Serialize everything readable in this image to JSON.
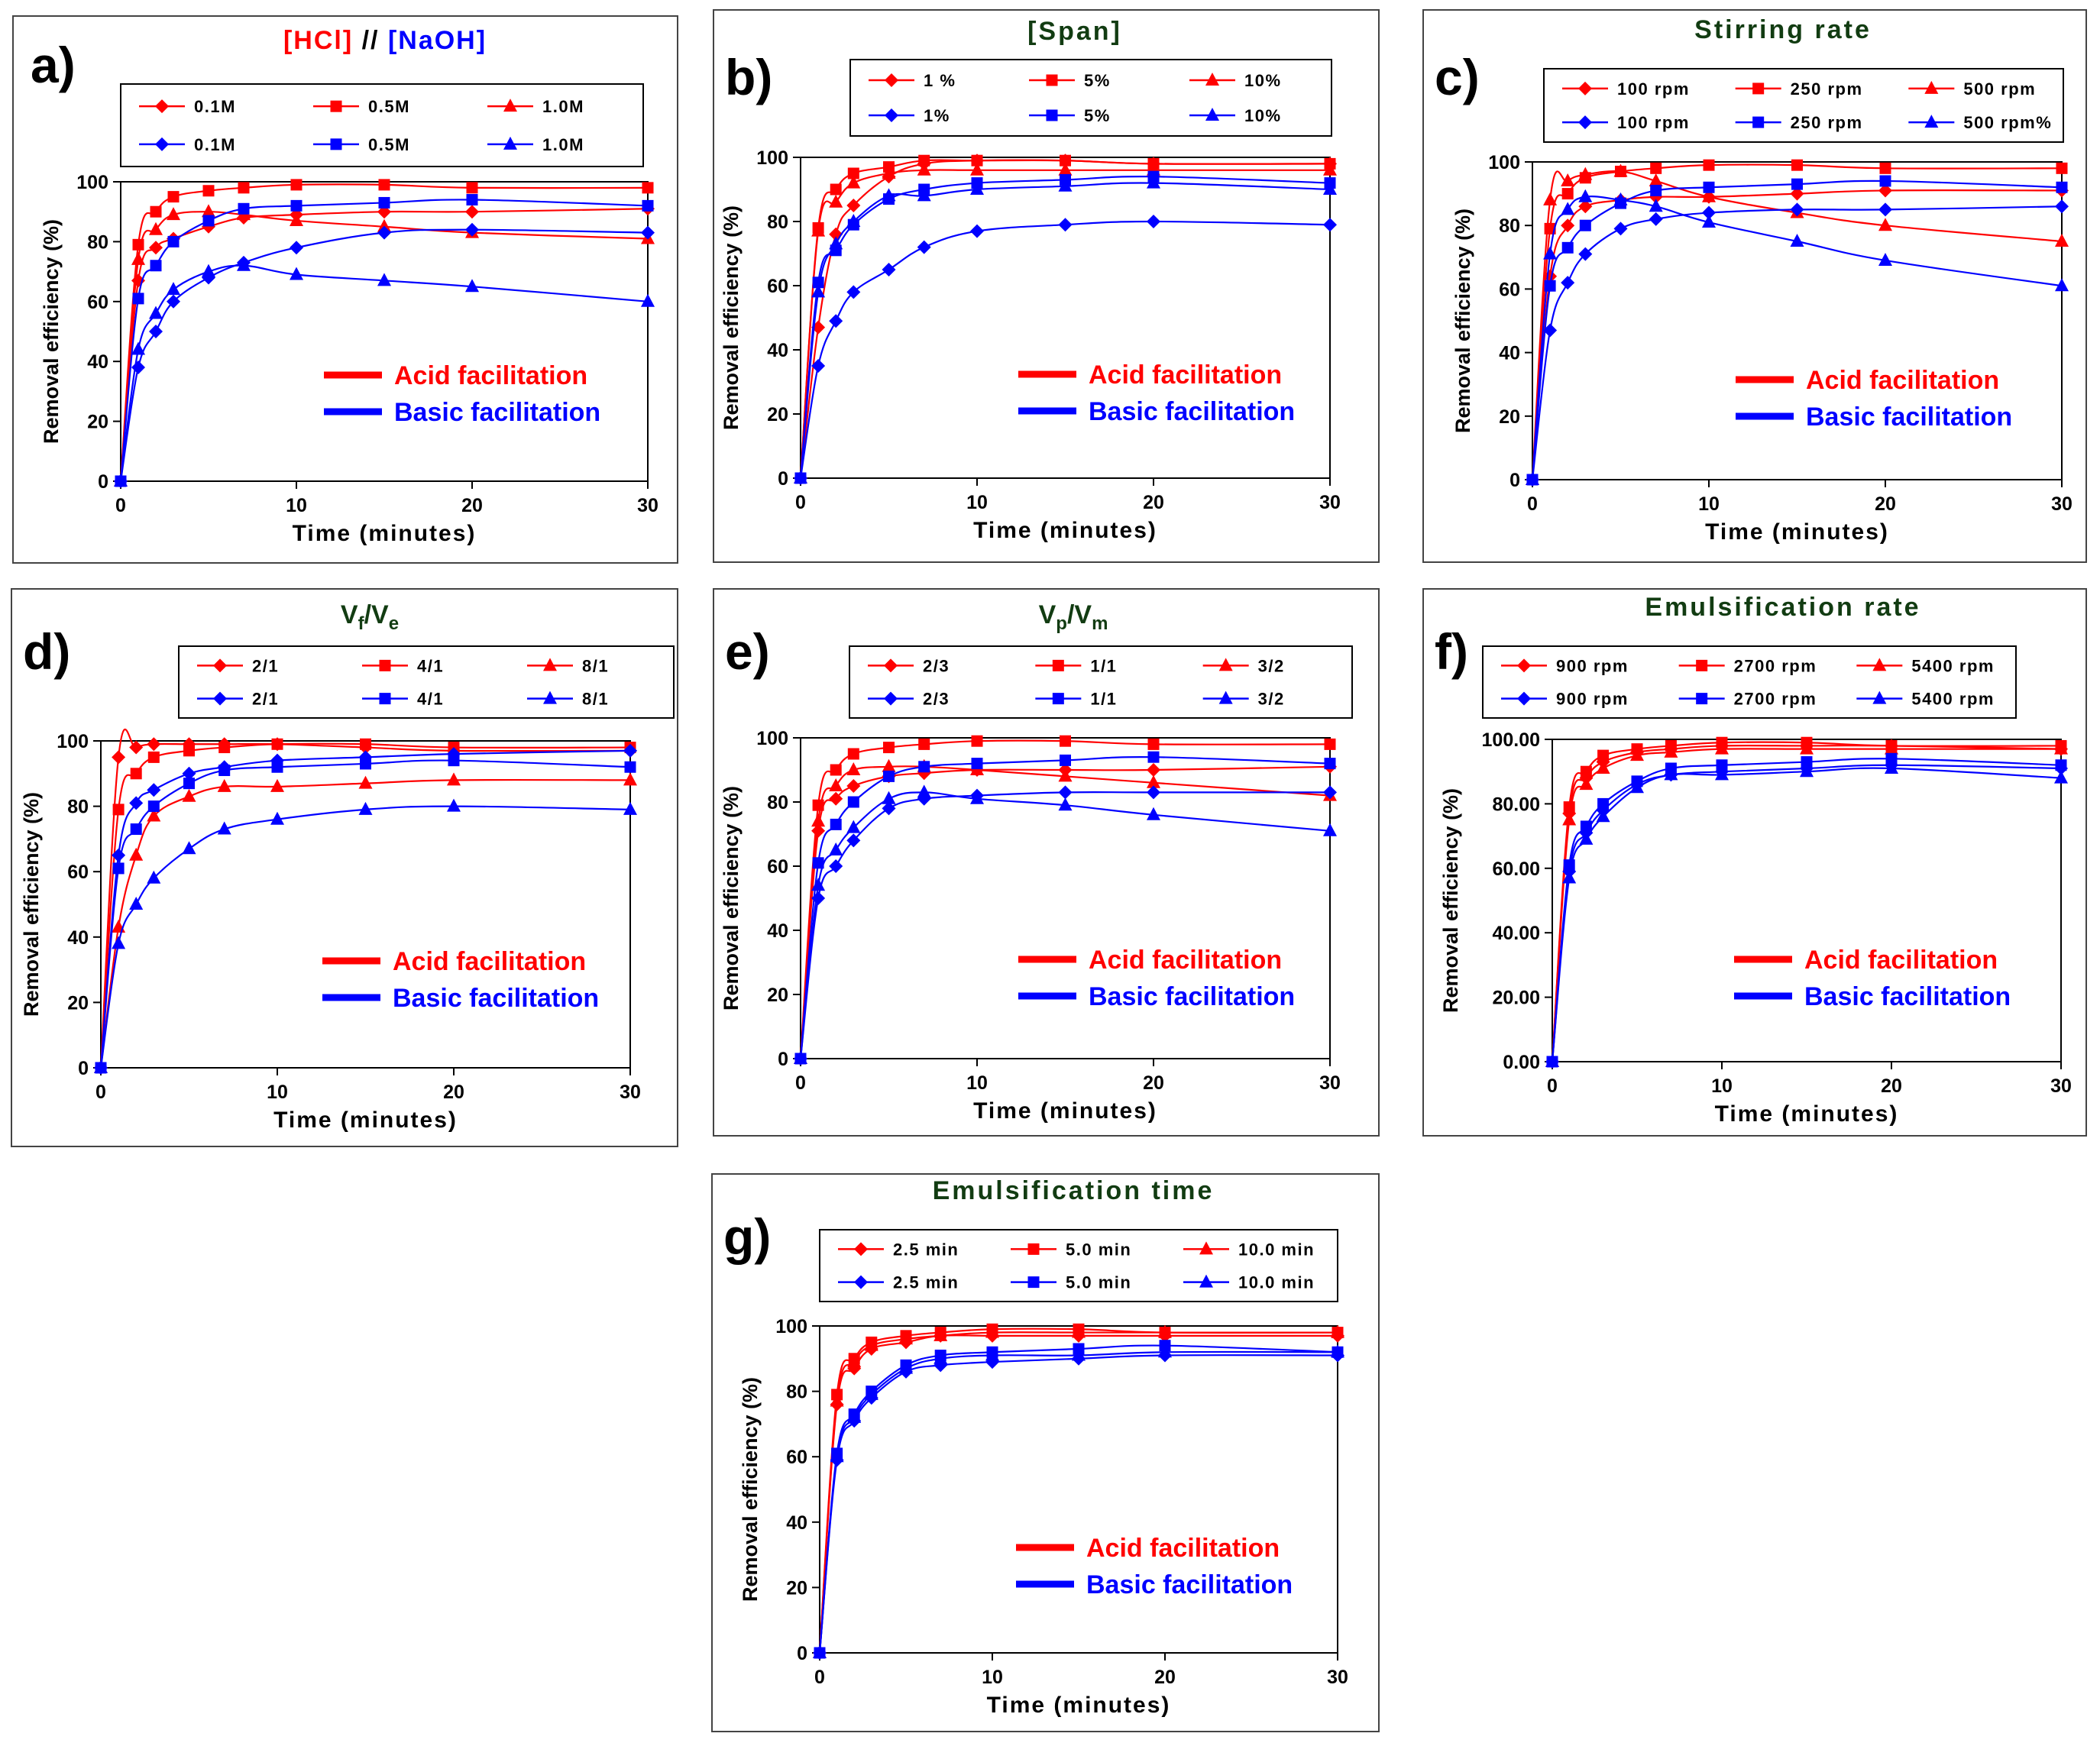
{
  "colors": {
    "acid": "#ff0000",
    "basic": "#0000ff",
    "title_dark": "#123c12"
  },
  "common": {
    "xlabel": "Time (minutes)",
    "ylabel": "Removal efficiency (%)",
    "key_acid": "Acid facilitation",
    "key_basic": "Basic facilitation"
  },
  "chart_data": [
    {
      "letter": "a)",
      "type": "line",
      "title_type": "hcl_naoh",
      "title_parts": [
        "[HCl]",
        " // ",
        "[NaOH]"
      ],
      "x": [
        0,
        1,
        2,
        3,
        5,
        7,
        10,
        15,
        20,
        30
      ],
      "xlim": [
        0,
        30
      ],
      "ylim": [
        0,
        100
      ],
      "xticks": [
        "0",
        "10",
        "20",
        "30"
      ],
      "yticks": [
        "0",
        "20",
        "40",
        "60",
        "80",
        "100"
      ],
      "xlabel": "Time (minutes)",
      "ylabel": "Removal efficiency (%)",
      "series": [
        {
          "name": "0.1M",
          "group": "acid",
          "marker": "diamond",
          "values": [
            0,
            67,
            78,
            81,
            85,
            88,
            89,
            90,
            90,
            91
          ]
        },
        {
          "name": "0.5M",
          "group": "acid",
          "marker": "square",
          "values": [
            0,
            79,
            90,
            95,
            97,
            98,
            99,
            99,
            98,
            98
          ]
        },
        {
          "name": "1.0M",
          "group": "acid",
          "marker": "triangle",
          "values": [
            0,
            74,
            84,
            89,
            90,
            89,
            87,
            85,
            83,
            81
          ]
        },
        {
          "name": "0.1M",
          "group": "basic",
          "marker": "diamond",
          "values": [
            0,
            38,
            50,
            60,
            68,
            73,
            78,
            83,
            84,
            83
          ]
        },
        {
          "name": "0.5M",
          "group": "basic",
          "marker": "square",
          "values": [
            0,
            61,
            72,
            80,
            87,
            91,
            92,
            93,
            94,
            92
          ]
        },
        {
          "name": "1.0M",
          "group": "basic",
          "marker": "triangle",
          "values": [
            0,
            44,
            56,
            64,
            70,
            72,
            69,
            67,
            65,
            60
          ]
        }
      ]
    },
    {
      "letter": "b)",
      "type": "line",
      "title_type": "plain",
      "title": "[Span]",
      "x": [
        0,
        1,
        2,
        3,
        5,
        7,
        10,
        15,
        20,
        30
      ],
      "xlim": [
        0,
        30
      ],
      "ylim": [
        0,
        100
      ],
      "xticks": [
        "0",
        "10",
        "20",
        "30"
      ],
      "yticks": [
        "0",
        "20",
        "40",
        "60",
        "80",
        "100"
      ],
      "xlabel": "Time (minutes)",
      "ylabel": "Removal efficiency (%)",
      "series": [
        {
          "name": "1 %",
          "group": "acid",
          "marker": "diamond",
          "values": [
            0,
            47,
            76,
            85,
            94,
            98,
            99,
            99,
            98,
            98
          ]
        },
        {
          "name": "5%",
          "group": "acid",
          "marker": "square",
          "values": [
            0,
            78,
            90,
            95,
            97,
            99,
            99,
            99,
            98,
            98
          ]
        },
        {
          "name": "10%",
          "group": "acid",
          "marker": "triangle",
          "values": [
            0,
            77,
            86,
            92,
            95,
            96,
            96,
            96,
            96,
            96
          ]
        },
        {
          "name": "1%",
          "group": "basic",
          "marker": "diamond",
          "values": [
            0,
            35,
            49,
            58,
            65,
            72,
            77,
            79,
            80,
            79
          ]
        },
        {
          "name": "5%",
          "group": "basic",
          "marker": "square",
          "values": [
            0,
            61,
            71,
            79,
            87,
            90,
            92,
            93,
            94,
            92
          ]
        },
        {
          "name": "10%",
          "group": "basic",
          "marker": "triangle",
          "values": [
            0,
            58,
            73,
            80,
            88,
            88,
            90,
            91,
            92,
            90
          ]
        }
      ]
    },
    {
      "letter": "c)",
      "type": "line",
      "title_type": "plain",
      "title": "Stirring rate",
      "x": [
        0,
        1,
        2,
        3,
        5,
        7,
        10,
        15,
        20,
        30
      ],
      "xlim": [
        0,
        30
      ],
      "ylim": [
        0,
        100
      ],
      "xticks": [
        "0",
        "10",
        "20",
        "30"
      ],
      "yticks": [
        "0",
        "20",
        "40",
        "60",
        "80",
        "100"
      ],
      "xlabel": "Time (minutes)",
      "ylabel": "Removal efficiency (%)",
      "series": [
        {
          "name": "100 rpm",
          "group": "acid",
          "marker": "diamond",
          "values": [
            0,
            64,
            80,
            86,
            88,
            89,
            89,
            90,
            91,
            91
          ]
        },
        {
          "name": "250 rpm",
          "group": "acid",
          "marker": "square",
          "values": [
            0,
            79,
            90,
            95,
            97,
            98,
            99,
            99,
            98,
            98
          ]
        },
        {
          "name": "500 rpm",
          "group": "acid",
          "marker": "triangle",
          "values": [
            0,
            88,
            94,
            96,
            97,
            94,
            89,
            84,
            80,
            75
          ]
        },
        {
          "name": "100 rpm",
          "group": "basic",
          "marker": "diamond",
          "values": [
            0,
            47,
            62,
            71,
            79,
            82,
            84,
            85,
            85,
            86
          ]
        },
        {
          "name": "250 rpm",
          "group": "basic",
          "marker": "square",
          "values": [
            0,
            61,
            73,
            80,
            87,
            91,
            92,
            93,
            94,
            92
          ]
        },
        {
          "name": "500 rpm%",
          "group": "basic",
          "marker": "triangle",
          "values": [
            0,
            71,
            85,
            89,
            88,
            86,
            81,
            75,
            69,
            61
          ]
        }
      ]
    },
    {
      "letter": "d)",
      "type": "line",
      "title_type": "sub",
      "title_parts": [
        "V",
        "f",
        "/V",
        "e"
      ],
      "x": [
        0,
        1,
        2,
        3,
        5,
        7,
        10,
        15,
        20,
        30
      ],
      "xlim": [
        0,
        30
      ],
      "ylim": [
        0,
        100
      ],
      "xticks": [
        "0",
        "10",
        "20",
        "30"
      ],
      "yticks": [
        "0",
        "20",
        "40",
        "60",
        "80",
        "100"
      ],
      "xlabel": "Time (minutes)",
      "ylabel": "Removal efficiency (%)",
      "series": [
        {
          "name": "2/1",
          "group": "acid",
          "marker": "diamond",
          "values": [
            0,
            95,
            98,
            99,
            99,
            99,
            99,
            98,
            97,
            97
          ]
        },
        {
          "name": "4/1",
          "group": "acid",
          "marker": "square",
          "values": [
            0,
            79,
            90,
            95,
            97,
            98,
            99,
            99,
            98,
            98
          ]
        },
        {
          "name": "8/1",
          "group": "acid",
          "marker": "triangle",
          "values": [
            0,
            43,
            65,
            77,
            83,
            86,
            86,
            87,
            88,
            88
          ]
        },
        {
          "name": "2/1",
          "group": "basic",
          "marker": "diamond",
          "values": [
            0,
            65,
            81,
            85,
            90,
            92,
            94,
            95,
            96,
            97
          ]
        },
        {
          "name": "4/1",
          "group": "basic",
          "marker": "square",
          "values": [
            0,
            61,
            73,
            80,
            87,
            91,
            92,
            93,
            94,
            92
          ]
        },
        {
          "name": "8/1",
          "group": "basic",
          "marker": "triangle",
          "values": [
            0,
            38,
            50,
            58,
            67,
            73,
            76,
            79,
            80,
            79
          ]
        }
      ]
    },
    {
      "letter": "e)",
      "type": "line",
      "title_type": "sub",
      "title_parts": [
        "V",
        "p",
        "/V",
        "m"
      ],
      "x": [
        0,
        1,
        2,
        3,
        5,
        7,
        10,
        15,
        20,
        30
      ],
      "xlim": [
        0,
        30
      ],
      "ylim": [
        0,
        100
      ],
      "xticks": [
        "0",
        "10",
        "20",
        "30"
      ],
      "yticks": [
        "0",
        "20",
        "40",
        "60",
        "80",
        "100"
      ],
      "xlabel": "Time (minutes)",
      "ylabel": "Removal efficiency (%)",
      "series": [
        {
          "name": "2/3",
          "group": "acid",
          "marker": "diamond",
          "values": [
            0,
            71,
            81,
            85,
            88,
            89,
            90,
            90,
            90,
            91
          ]
        },
        {
          "name": "1/1",
          "group": "acid",
          "marker": "square",
          "values": [
            0,
            79,
            90,
            95,
            97,
            98,
            99,
            99,
            98,
            98
          ]
        },
        {
          "name": "3/2",
          "group": "acid",
          "marker": "triangle",
          "values": [
            0,
            74,
            85,
            90,
            91,
            91,
            90,
            88,
            86,
            82
          ]
        },
        {
          "name": "2/3",
          "group": "basic",
          "marker": "diamond",
          "values": [
            0,
            50,
            60,
            68,
            78,
            81,
            82,
            83,
            83,
            83
          ]
        },
        {
          "name": "1/1",
          "group": "basic",
          "marker": "square",
          "values": [
            0,
            61,
            73,
            80,
            88,
            91,
            92,
            93,
            94,
            92
          ]
        },
        {
          "name": "3/2",
          "group": "basic",
          "marker": "triangle",
          "values": [
            0,
            54,
            65,
            72,
            81,
            83,
            81,
            79,
            76,
            71
          ]
        }
      ]
    },
    {
      "letter": "f)",
      "type": "line",
      "title_type": "plain",
      "title": "Emulsification rate",
      "x": [
        0,
        1,
        2,
        3,
        5,
        7,
        10,
        15,
        20,
        30
      ],
      "xlim": [
        0,
        30
      ],
      "ylim": [
        0,
        100
      ],
      "xticks": [
        "0",
        "10",
        "20",
        "30"
      ],
      "yticks": [
        "0.00",
        "20.00",
        "40.00",
        "60.00",
        "80.00",
        "100.00"
      ],
      "xlabel": "Time (minutes)",
      "ylabel": "Removal efficiency (%)",
      "series": [
        {
          "name": "900 rpm",
          "group": "acid",
          "marker": "diamond",
          "values": [
            0,
            77,
            88,
            93,
            96,
            97,
            98,
            98,
            98,
            97
          ]
        },
        {
          "name": "2700 rpm",
          "group": "acid",
          "marker": "square",
          "values": [
            0,
            79,
            90,
            95,
            97,
            98,
            99,
            99,
            98,
            98
          ]
        },
        {
          "name": "5400 rpm",
          "group": "acid",
          "marker": "triangle",
          "values": [
            0,
            75,
            86,
            91,
            95,
            96,
            97,
            97,
            97,
            97
          ]
        },
        {
          "name": "900 rpm",
          "group": "basic",
          "marker": "diamond",
          "values": [
            0,
            59,
            71,
            78,
            86,
            89,
            90,
            91,
            92,
            91
          ]
        },
        {
          "name": "2700 rpm",
          "group": "basic",
          "marker": "square",
          "values": [
            0,
            61,
            73,
            80,
            87,
            91,
            92,
            93,
            94,
            92
          ]
        },
        {
          "name": "5400 rpm",
          "group": "basic",
          "marker": "triangle",
          "values": [
            0,
            57,
            69,
            76,
            85,
            89,
            89,
            90,
            91,
            88
          ]
        }
      ]
    },
    {
      "letter": "g)",
      "type": "line",
      "title_type": "plain",
      "title": "Emulsification time",
      "x": [
        0,
        1,
        2,
        3,
        5,
        7,
        10,
        15,
        20,
        30
      ],
      "xlim": [
        0,
        30
      ],
      "ylim": [
        0,
        100
      ],
      "xticks": [
        "0",
        "10",
        "20",
        "30"
      ],
      "yticks": [
        "0",
        "20",
        "40",
        "60",
        "80",
        "100"
      ],
      "xlabel": "Time (minutes)",
      "ylabel": "Removal efficiency (%)",
      "series": [
        {
          "name": "2.5 min",
          "group": "acid",
          "marker": "diamond",
          "values": [
            0,
            76,
            87,
            93,
            95,
            97,
            97,
            97,
            97,
            97
          ]
        },
        {
          "name": "5.0 min",
          "group": "acid",
          "marker": "square",
          "values": [
            0,
            79,
            90,
            95,
            97,
            98,
            99,
            99,
            98,
            98
          ]
        },
        {
          "name": "10.0 min",
          "group": "acid",
          "marker": "triangle",
          "values": [
            0,
            77,
            89,
            94,
            96,
            97,
            98,
            98,
            98,
            98
          ]
        },
        {
          "name": "2.5 min",
          "group": "basic",
          "marker": "diamond",
          "values": [
            0,
            59,
            71,
            78,
            86,
            88,
            89,
            90,
            91,
            91
          ]
        },
        {
          "name": "5.0 min",
          "group": "basic",
          "marker": "square",
          "values": [
            0,
            61,
            73,
            80,
            88,
            91,
            92,
            93,
            94,
            92
          ]
        },
        {
          "name": "10.0 min",
          "group": "basic",
          "marker": "triangle",
          "values": [
            0,
            60,
            72,
            79,
            87,
            90,
            91,
            91,
            92,
            92
          ]
        }
      ]
    }
  ]
}
